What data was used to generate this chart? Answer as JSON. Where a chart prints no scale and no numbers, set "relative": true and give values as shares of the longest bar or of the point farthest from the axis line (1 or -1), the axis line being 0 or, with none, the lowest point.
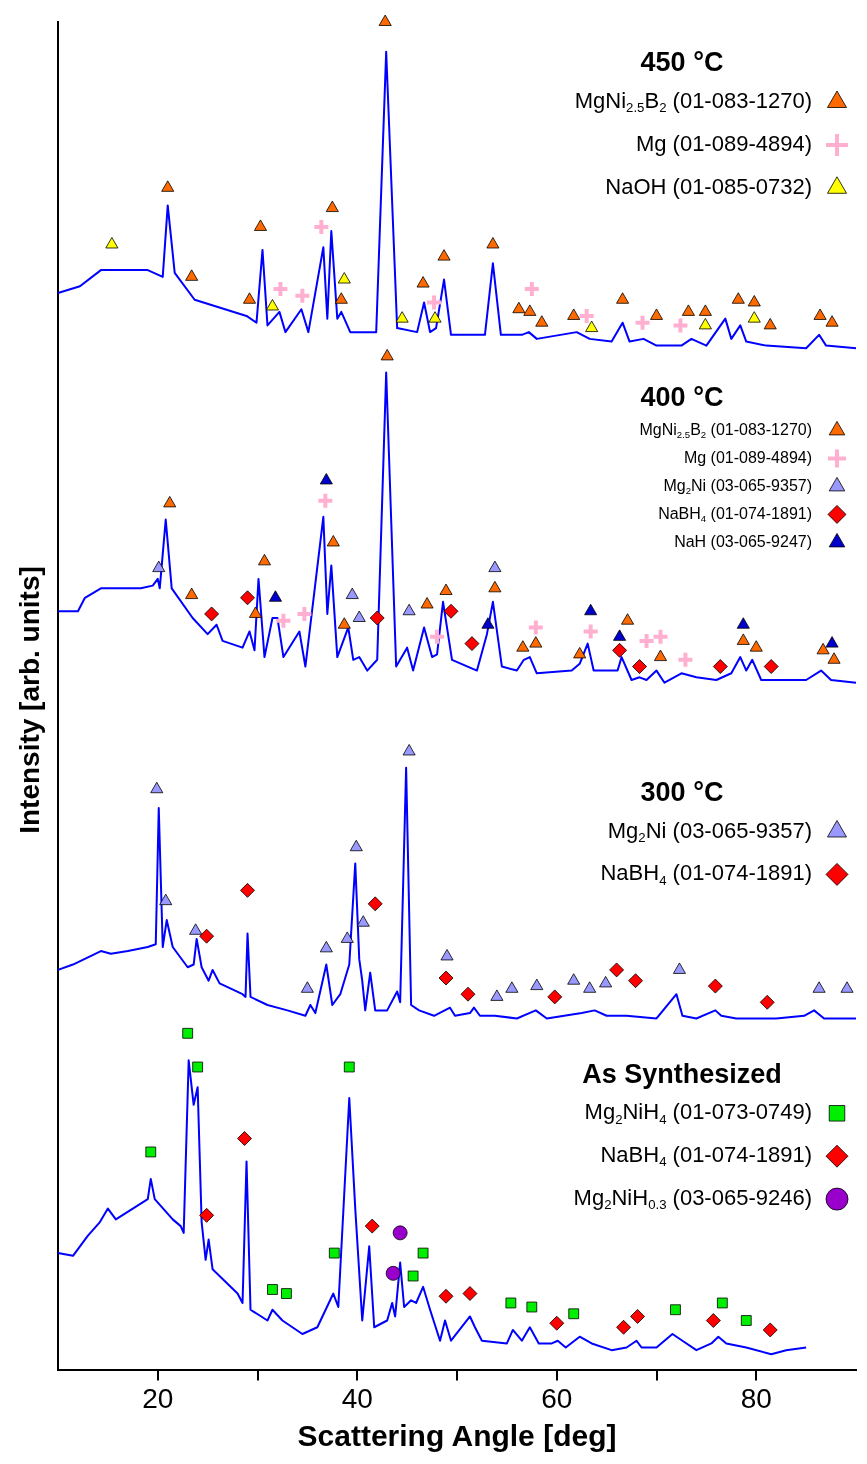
{
  "chart_data": {
    "type": "line",
    "xlabel": "Scattering Angle [deg]",
    "ylabel": "Intensity [arb. units]",
    "relative": true,
    "xlim": [
      10,
      90
    ],
    "xticks": [
      20,
      {
        "value": 30,
        "label": null
      },
      40,
      {
        "value": 50,
        "label": null
      },
      60,
      {
        "value": 70,
        "label": null
      },
      80
    ],
    "legend": "top right",
    "annotations": [
      "450 °C",
      "400 °C",
      "300 °C",
      "As Synthesized"
    ],
    "series": [
      {
        "type": "line",
        "color": "#0000ff",
        "marker": "none",
        "x": [
          10,
          12.2,
          14.3,
          15.8,
          19,
          20.5,
          21,
          21.7,
          23.7,
          28.9,
          29.9,
          30.5,
          31,
          32.2,
          32.8,
          34.4,
          35.1,
          36.6,
          37,
          37.4,
          38,
          38.4,
          39.3,
          41.9,
          42.9,
          44,
          46,
          46.7,
          47.3,
          47.9,
          48.7,
          49.4,
          52.8,
          53.6,
          54.4,
          56.5,
          57.2,
          58,
          62,
          63.3,
          65.5,
          66.6,
          67.3,
          68.7,
          70,
          72.5,
          73.5,
          75,
          76.9,
          77.5,
          78.4,
          79,
          81,
          85,
          86.3,
          87,
          90
        ],
        "values": [
          0.799,
          0.804,
          0.816,
          0.816,
          0.816,
          0.811,
          0.864,
          0.814,
          0.794,
          0.782,
          0.777,
          0.831,
          0.775,
          0.785,
          0.77,
          0.787,
          0.77,
          0.833,
          0.78,
          0.845,
          0.78,
          0.785,
          0.77,
          0.77,
          0.978,
          0.773,
          0.77,
          0.792,
          0.77,
          0.773,
          0.809,
          0.768,
          0.768,
          0.821,
          0.768,
          0.768,
          0.77,
          0.765,
          0.77,
          0.765,
          0.763,
          0.777,
          0.763,
          0.765,
          0.76,
          0.76,
          0.765,
          0.76,
          0.78,
          0.765,
          0.775,
          0.763,
          0.76,
          0.758,
          0.768,
          0.76,
          0.758
        ]
      },
      {
        "type": "scatter",
        "name": "MgNi$_{2.5}$B$_{2}$ (01-083-1270)",
        "color": "#ff6a00",
        "marker": "triangle",
        "x": [
          21,
          23.4,
          29.2,
          30.3,
          37.5,
          38.4,
          42.8,
          46.6,
          48.7,
          53.6,
          56.2,
          57.3,
          58.5,
          61.7,
          66.6,
          70,
          73.2,
          74.9,
          78.2,
          79.8,
          81.4,
          86.4,
          87.6
        ],
        "values": [
          0.877,
          0.811,
          0.794,
          0.848,
          0.862,
          0.794,
          1,
          0.806,
          0.826,
          0.835,
          0.787,
          0.785,
          0.777,
          0.782,
          0.794,
          0.782,
          0.785,
          0.785,
          0.794,
          0.792,
          0.775,
          0.782,
          0.777
        ]
      },
      {
        "type": "scatter",
        "name": "Mg (01-089-4894)",
        "color": "#ffb0d0",
        "marker": "cross",
        "x": [
          36.4,
          32.3,
          34.5,
          47.7,
          57.5,
          63,
          68.6,
          72.4
        ],
        "values": [
          0.848,
          0.802,
          0.797,
          0.792,
          0.802,
          0.782,
          0.777,
          0.775
        ]
      },
      {
        "type": "scatter",
        "name": "NaOH (01-085-0732)",
        "color": "#ffff00",
        "marker": "triangle",
        "x": [
          15.4,
          31.5,
          38.7,
          44.5,
          47.8,
          63.5,
          74.9,
          79.8
        ],
        "values": [
          0.835,
          0.789,
          0.809,
          0.78,
          0.78,
          0.773,
          0.775,
          0.78
        ]
      },
      {
        "type": "line",
        "color": "#0000ff",
        "marker": "none",
        "x": [
          10,
          12,
          12.7,
          14.3,
          18.3,
          19.5,
          20,
          20.2,
          20.8,
          21.4,
          23.5,
          25,
          25.9,
          26.5,
          28.5,
          29.2,
          29.7,
          30.1,
          30.7,
          31.5,
          32,
          32.6,
          34.2,
          34.8,
          36.6,
          37,
          37.4,
          38,
          39.1,
          39.6,
          40.2,
          41,
          42,
          42.9,
          43.9,
          45,
          45.6,
          46.7,
          47.5,
          48,
          48.6,
          49.5,
          52,
          53,
          53.6,
          54.5,
          56,
          56.7,
          57.3,
          58,
          61.5,
          62.3,
          63.1,
          63.7,
          66.1,
          66.5,
          67.5,
          68.3,
          69,
          70,
          70.8,
          72.5,
          74,
          76,
          77.5,
          78.4,
          79,
          79.6,
          80.5,
          85,
          86.5,
          87.5,
          90
        ],
        "values": [
          0.563,
          0.563,
          0.573,
          0.58,
          0.58,
          0.582,
          0.587,
          0.58,
          0.631,
          0.58,
          0.558,
          0.546,
          0.553,
          0.541,
          0.536,
          0.548,
          0.534,
          0.587,
          0.529,
          0.558,
          0.558,
          0.529,
          0.548,
          0.522,
          0.633,
          0.561,
          0.597,
          0.529,
          0.551,
          0.527,
          0.529,
          0.519,
          0.527,
          0.74,
          0.522,
          0.536,
          0.519,
          0.551,
          0.529,
          0.531,
          0.57,
          0.527,
          0.519,
          0.546,
          0.57,
          0.522,
          0.519,
          0.527,
          0.529,
          0.517,
          0.519,
          0.524,
          0.539,
          0.519,
          0.519,
          0.529,
          0.512,
          0.514,
          0.512,
          0.519,
          0.51,
          0.517,
          0.514,
          0.512,
          0.517,
          0.529,
          0.519,
          0.527,
          0.512,
          0.512,
          0.519,
          0.512,
          0.51
        ]
      },
      {
        "type": "scatter",
        "name": "MgNi$_{2.5}$B$_{2}$ (01-083-1270)",
        "color": "#ff6a00",
        "marker": "triangle",
        "x": [
          21.2,
          23.4,
          29.8,
          30.7,
          37.6,
          38.7,
          43,
          47,
          48.9,
          53.8,
          56.6,
          57.9,
          62.3,
          67.1,
          70.4,
          78.7,
          80,
          86.7,
          87.8
        ],
        "values": [
          0.643,
          0.575,
          0.561,
          0.6,
          0.614,
          0.553,
          0.752,
          0.568,
          0.578,
          0.58,
          0.536,
          0.539,
          0.531,
          0.556,
          0.529,
          0.541,
          0.536,
          0.534,
          0.527
        ]
      },
      {
        "type": "scatter",
        "name": "Mg (01-089-4894)",
        "color": "#ffb0d0",
        "marker": "cross",
        "x": [
          36.8,
          32.6,
          34.7,
          48,
          57.9,
          63.4,
          69,
          70.4,
          72.9
        ],
        "values": [
          0.645,
          0.556,
          0.561,
          0.544,
          0.551,
          0.548,
          0.541,
          0.544,
          0.527
        ]
      },
      {
        "type": "scatter",
        "name": "Mg$_{2}$Ni (03-065-9357)",
        "color": "#9999ff",
        "marker": "triangle",
        "x": [
          20.1,
          39.5,
          40.2,
          45.2,
          53.8
        ],
        "values": [
          0.595,
          0.575,
          0.558,
          0.563,
          0.595
        ]
      },
      {
        "type": "scatter",
        "name": "NaBH$_{4}$ (01-074-1891)",
        "color": "#ff0000",
        "marker": "diamond",
        "x": [
          25.4,
          29,
          42,
          49.4,
          51.5,
          66.3,
          68.3,
          76.4,
          81.5
        ],
        "values": [
          0.561,
          0.573,
          0.558,
          0.563,
          0.539,
          0.534,
          0.522,
          0.522,
          0.522
        ]
      },
      {
        "type": "scatter",
        "name": "NaH (03-065-9247)",
        "color": "#0000cc",
        "marker": "triangle",
        "x": [
          36.9,
          31.8,
          53.1,
          63.4,
          66.3,
          78.7,
          87.6
        ],
        "values": [
          0.66,
          0.573,
          0.553,
          0.563,
          0.544,
          0.553,
          0.539
        ]
      },
      {
        "type": "line",
        "color": "#0000ff",
        "marker": "none",
        "x": [
          10,
          11.5,
          14.3,
          15.3,
          17,
          19,
          19.8,
          20.1,
          20.5,
          20.9,
          21.5,
          23,
          23.6,
          23.9,
          24.4,
          25.1,
          25.5,
          26.2,
          28.5,
          28.8,
          29,
          29.3,
          31,
          33,
          34.8,
          35.3,
          35.8,
          36.9,
          37.5,
          38.3,
          39.2,
          39.8,
          40.2,
          40.5,
          40.8,
          41.3,
          41.8,
          43,
          44,
          44.3,
          44.9,
          45.4,
          46.2,
          47.7,
          49.3,
          49.8,
          51.3,
          51.7,
          52.3,
          53.8,
          56,
          57.9,
          59,
          62.5,
          63.8,
          65,
          67,
          70,
          72,
          72.6,
          74,
          75.9,
          76.5,
          78,
          82,
          84.8,
          85.8,
          86.8,
          90
        ],
        "values": [
          0.297,
          0.301,
          0.311,
          0.309,
          0.311,
          0.314,
          0.316,
          0.417,
          0.314,
          0.334,
          0.314,
          0.299,
          0.301,
          0.32,
          0.299,
          0.289,
          0.297,
          0.287,
          0.279,
          0.277,
          0.324,
          0.277,
          0.271,
          0.267,
          0.263,
          0.271,
          0.265,
          0.301,
          0.271,
          0.279,
          0.301,
          0.376,
          0.305,
          0.289,
          0.267,
          0.295,
          0.267,
          0.267,
          0.281,
          0.273,
          0.447,
          0.271,
          0.267,
          0.263,
          0.269,
          0.263,
          0.265,
          0.269,
          0.263,
          0.263,
          0.261,
          0.267,
          0.261,
          0.265,
          0.267,
          0.263,
          0.263,
          0.261,
          0.279,
          0.263,
          0.261,
          0.267,
          0.263,
          0.261,
          0.261,
          0.263,
          0.267,
          0.261,
          0.261
        ]
      },
      {
        "type": "scatter",
        "name": "Mg$_{2}$Ni (03-065-9357)",
        "color": "#9999ff",
        "marker": "triangle",
        "x": [
          19.9,
          20.8,
          23.8,
          35,
          36.9,
          39,
          39.9,
          40.6,
          45.2,
          49,
          54,
          55.5,
          58,
          61.7,
          63.3,
          64.9,
          72.3,
          86.3,
          89.1
        ],
        "values": [
          0.431,
          0.348,
          0.326,
          0.283,
          0.313,
          0.32,
          0.388,
          0.332,
          0.459,
          0.307,
          0.277,
          0.283,
          0.285,
          0.289,
          0.283,
          0.287,
          0.297,
          0.283,
          0.283
        ]
      },
      {
        "type": "scatter",
        "name": "NaBH$_{4}$ (01-074-1891)",
        "color": "#ff0000",
        "marker": "diamond",
        "x": [
          24.9,
          29,
          41.8,
          48.9,
          51.1,
          59.8,
          66,
          67.9,
          75.9,
          81.1
        ],
        "values": [
          0.322,
          0.356,
          0.346,
          0.291,
          0.279,
          0.277,
          0.297,
          0.289,
          0.285,
          0.273
        ]
      },
      {
        "type": "line",
        "color": "#0000ff",
        "marker": "none",
        "x": [
          10,
          11.5,
          13,
          14.2,
          15,
          15.8,
          17.5,
          19,
          19.3,
          19.7,
          21.5,
          22.3,
          22.6,
          23.1,
          23.6,
          24,
          24.4,
          24.8,
          25.1,
          25.5,
          28,
          28.5,
          28.9,
          29.3,
          31,
          31.5,
          32.5,
          34.5,
          36,
          37.6,
          38.1,
          39.2,
          39.8,
          40.5,
          41.2,
          41.7,
          43,
          43.5,
          43.8,
          44.3,
          44.7,
          45.4,
          45.9,
          46.6,
          47.3,
          48.3,
          48.8,
          49.4,
          51.3,
          51.8,
          52.5,
          55,
          55.6,
          56.5,
          57.3,
          58.2,
          59.5,
          60.1,
          60.9,
          62.3,
          63.5,
          65.5,
          67,
          68,
          68.5,
          70,
          71.6,
          72.6,
          74,
          75.5,
          76.2,
          77,
          79,
          81.5,
          83,
          85
        ],
        "values": [
          0.087,
          0.085,
          0.1,
          0.11,
          0.12,
          0.112,
          0.12,
          0.127,
          0.142,
          0.127,
          0.112,
          0.107,
          0.102,
          0.23,
          0.197,
          0.21,
          0.11,
          0.082,
          0.097,
          0.075,
          0.057,
          0.05,
          0.155,
          0.045,
          0.037,
          0.045,
          0.037,
          0.027,
          0.032,
          0.057,
          0.047,
          0.202,
          0.12,
          0.037,
          0.092,
          0.032,
          0.037,
          0.05,
          0.04,
          0.08,
          0.047,
          0.052,
          0.05,
          0.062,
          0.045,
          0.022,
          0.037,
          0.022,
          0.04,
          0.032,
          0.022,
          0.02,
          0.03,
          0.022,
          0.032,
          0.02,
          0.02,
          0.022,
          0.017,
          0.025,
          0.02,
          0.015,
          0.017,
          0.022,
          0.017,
          0.017,
          0.027,
          0.022,
          0.015,
          0.02,
          0.025,
          0.02,
          0.017,
          0.012,
          0.015,
          0.017
        ]
      },
      {
        "type": "scatter",
        "name": "Mg$_{2}$NiH$_{4}$ (01-073-0749)",
        "color": "#00ee00",
        "marker": "square",
        "x": [
          19.3,
          23,
          24,
          39.2,
          37.7,
          31.5,
          32.9,
          46.6,
          45.6,
          55.4,
          57.5,
          61.7,
          71.9,
          76.6,
          79
        ],
        "values": [
          0.162,
          0.25,
          0.225,
          0.225,
          0.087,
          0.06,
          0.057,
          0.087,
          0.07,
          0.05,
          0.047,
          0.042,
          0.045,
          0.05,
          0.037
        ]
      },
      {
        "type": "scatter",
        "name": "NaBH$_{4}$ (01-074-1891)",
        "color": "#ff0000",
        "marker": "diamond",
        "x": [
          28.7,
          24.9,
          41.5,
          48.9,
          51.3,
          60,
          66.7,
          68.1,
          75.7,
          81.4
        ],
        "values": [
          0.172,
          0.115,
          0.107,
          0.055,
          0.057,
          0.035,
          0.032,
          0.04,
          0.037,
          0.03
        ]
      },
      {
        "type": "scatter",
        "name": "Mg$_{2}$NiH$_{0.3}$ (03-065-9246)",
        "color": "#9900cc",
        "marker": "circle",
        "x": [
          44.3,
          43.6
        ],
        "values": [
          0.102,
          0.072
        ]
      }
    ]
  }
}
